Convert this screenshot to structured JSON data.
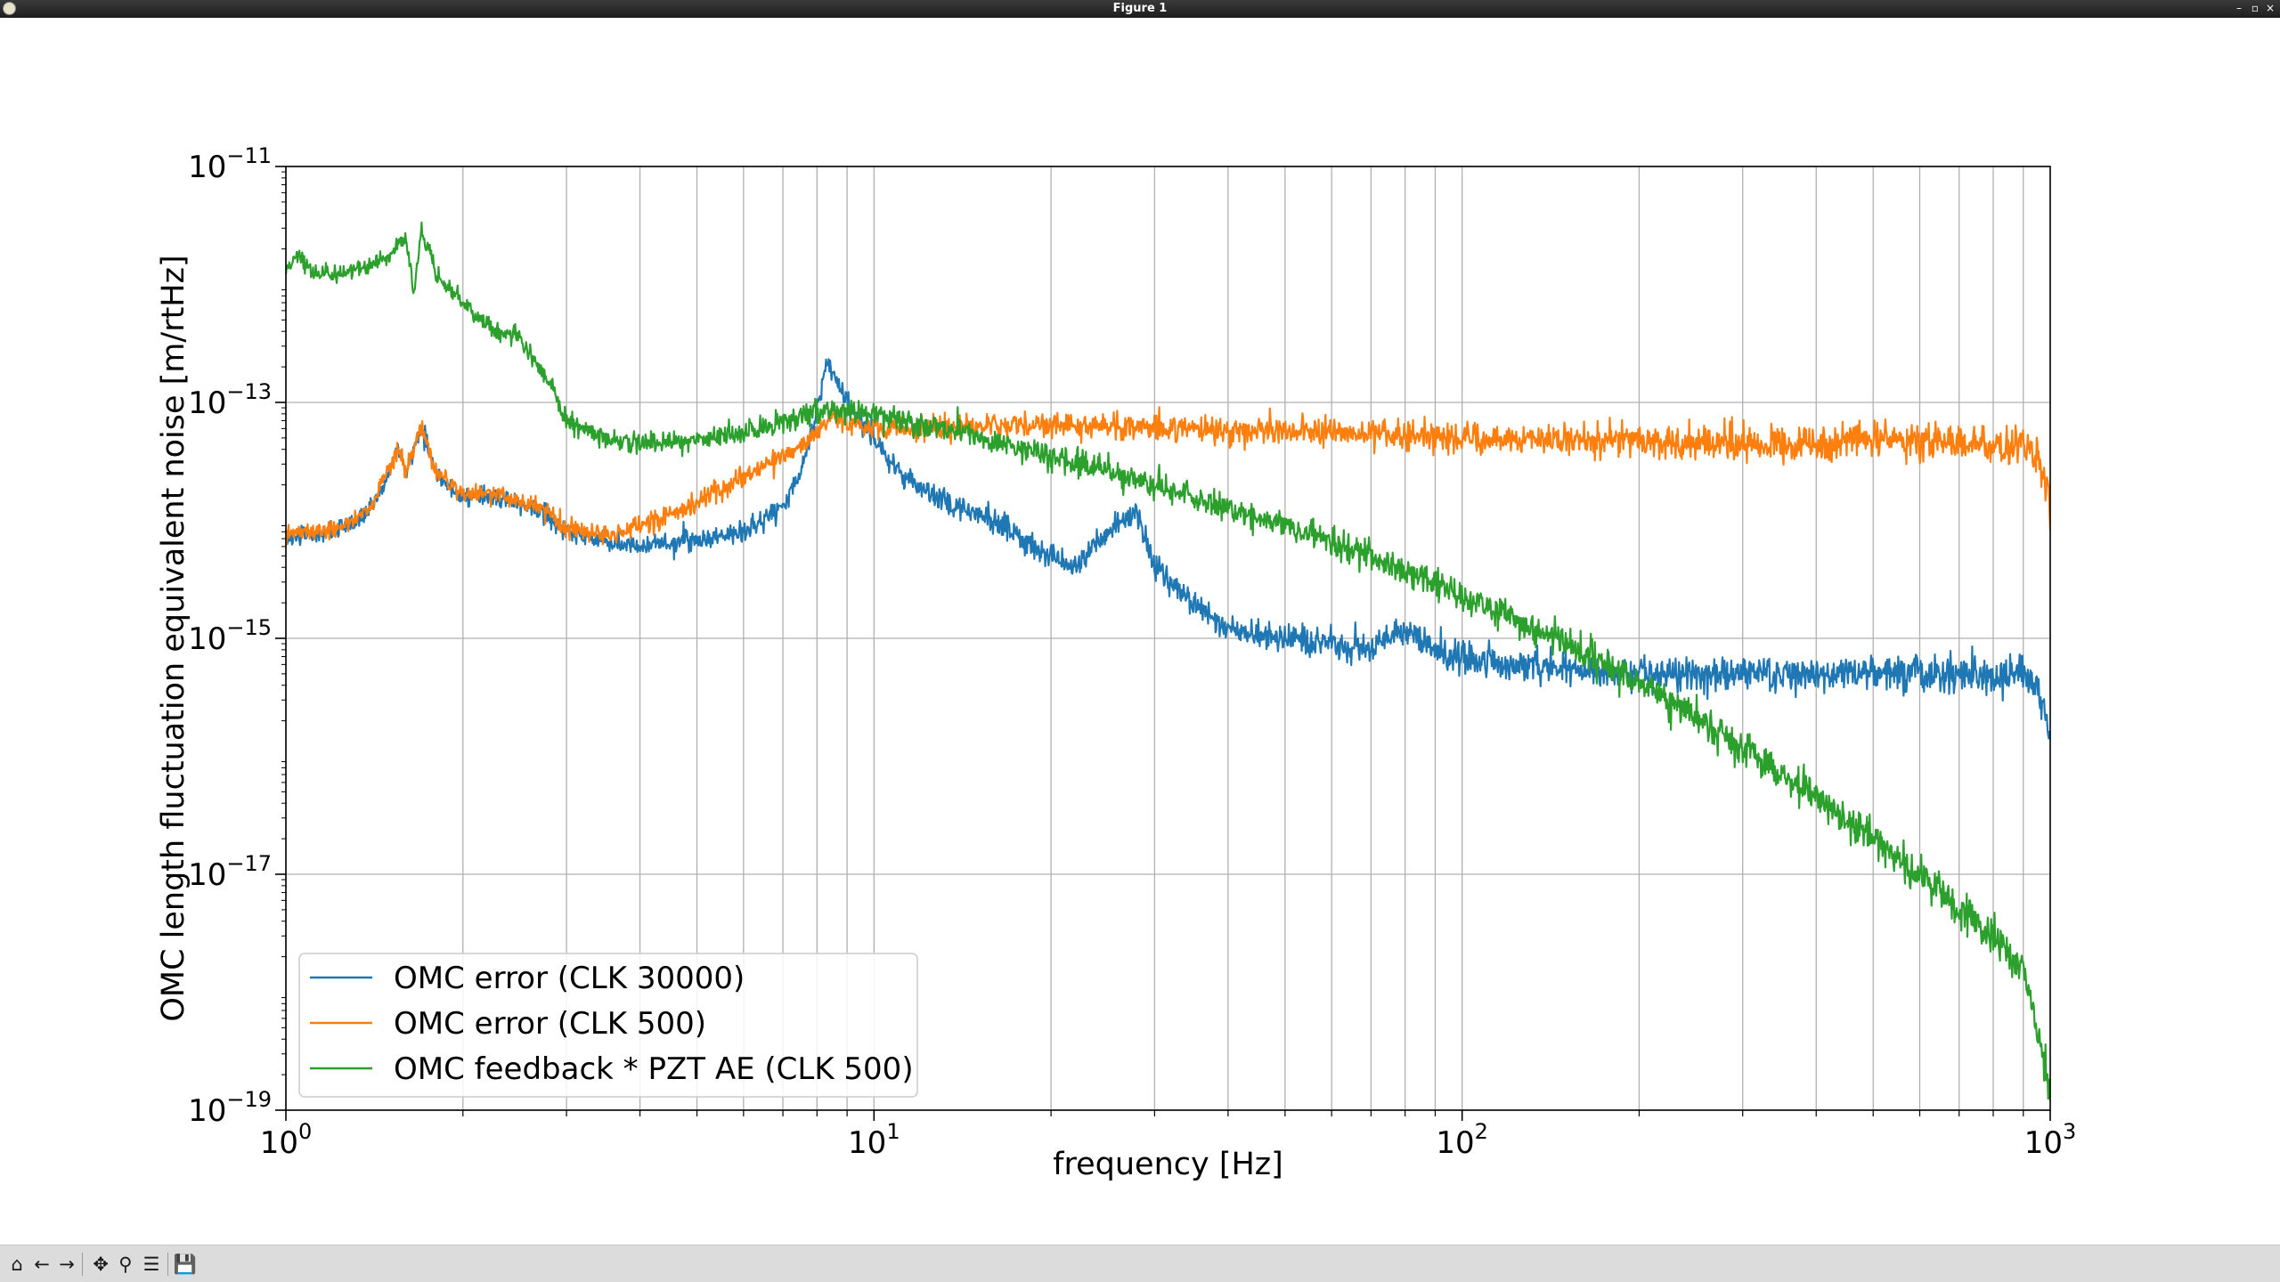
{
  "window": {
    "title": "Figure 1"
  },
  "toolbar": {
    "buttons": [
      {
        "name": "home-button",
        "icon": "home-icon",
        "glyph": "⌂"
      },
      {
        "name": "back-button",
        "icon": "arrow-left-icon",
        "glyph": "←"
      },
      {
        "name": "forward-button",
        "icon": "arrow-right-icon",
        "glyph": "→"
      },
      {
        "name": "pan-button",
        "icon": "move-icon",
        "glyph": "✥"
      },
      {
        "name": "zoom-button",
        "icon": "magnifier-icon",
        "glyph": "⚲"
      },
      {
        "name": "configure-subplots-button",
        "icon": "sliders-icon",
        "glyph": "☰"
      },
      {
        "name": "save-button",
        "icon": "floppy-disk-icon",
        "glyph": "💾"
      }
    ],
    "coordinates": ""
  },
  "chart_data": {
    "type": "line",
    "title": "",
    "xlabel": "frequency [Hz]",
    "ylabel": "OMC length fluctuation equivalent noise [m/rtHz]",
    "xscale": "log",
    "yscale": "log",
    "xlim": [
      1,
      1000
    ],
    "ylim": [
      1e-19,
      1e-11
    ],
    "xticks": [
      {
        "value": 1,
        "base": "10",
        "exp": "0"
      },
      {
        "value": 10,
        "base": "10",
        "exp": "1"
      },
      {
        "value": 100,
        "base": "10",
        "exp": "2"
      },
      {
        "value": 1000,
        "base": "10",
        "exp": "3"
      }
    ],
    "yticks": [
      {
        "value": 1e-19,
        "base": "10",
        "exp": "−19"
      },
      {
        "value": 1e-17,
        "base": "10",
        "exp": "−17"
      },
      {
        "value": 1e-15,
        "base": "10",
        "exp": "−15"
      },
      {
        "value": 1e-13,
        "base": "10",
        "exp": "−13"
      },
      {
        "value": 1e-11,
        "base": "10",
        "exp": "−11"
      }
    ],
    "grid": true,
    "legend_position": "lower-left",
    "series": [
      {
        "name": "OMC error (CLK 30000)",
        "color": "#1f77b4",
        "x": [
          1.0,
          1.1,
          1.2,
          1.3,
          1.4,
          1.5,
          1.55,
          1.6,
          1.65,
          1.7,
          1.8,
          2.0,
          2.2,
          2.5,
          2.8,
          3.0,
          3.5,
          4.0,
          5.0,
          6.0,
          7.0,
          7.5,
          8.0,
          8.3,
          8.6,
          9.0,
          10.0,
          11.0,
          13.0,
          16.0,
          20.0,
          22.0,
          25.0,
          28.0,
          30.0,
          35.0,
          40.0,
          50.0,
          60.0,
          70.0,
          80.0,
          90.0,
          100.0,
          120.0,
          150.0,
          200.0,
          300.0,
          500.0,
          700.0,
          900.0,
          950.0,
          1000.0
        ],
        "y": [
          7e-15,
          7.5e-15,
          8e-15,
          9.5e-15,
          1.3e-14,
          2.5e-14,
          4e-14,
          2.5e-14,
          4e-14,
          6e-14,
          2.5e-14,
          1.5e-14,
          1.6e-14,
          1.4e-14,
          1.1e-14,
          8e-15,
          6.5e-15,
          6e-15,
          6.8e-15,
          8e-15,
          1.3e-14,
          2.5e-14,
          9e-14,
          2.2e-13,
          1.6e-13,
          1e-13,
          5e-14,
          2.5e-14,
          1.5e-14,
          1e-14,
          5e-15,
          4e-15,
          8e-15,
          1.2e-14,
          4e-15,
          2e-15,
          1.2e-15,
          1e-15,
          9e-16,
          8e-16,
          1.2e-15,
          8e-16,
          7e-16,
          6e-16,
          5.5e-16,
          5e-16,
          5e-16,
          5e-16,
          5e-16,
          5e-16,
          4e-16,
          1.5e-16
        ]
      },
      {
        "name": "OMC error (CLK 500)",
        "color": "#ff7f0e",
        "x": [
          1.0,
          1.1,
          1.2,
          1.3,
          1.4,
          1.5,
          1.55,
          1.6,
          1.65,
          1.7,
          1.8,
          2.0,
          2.2,
          2.5,
          2.8,
          3.0,
          3.5,
          4.0,
          5.0,
          6.0,
          7.0,
          8.0,
          8.5,
          9.0,
          10.0,
          12.0,
          15.0,
          20.0,
          28.0,
          30.0,
          40.0,
          60.0,
          100.0,
          200.0,
          280.0,
          300.0,
          400.0,
          500.0,
          600.0,
          800.0,
          900.0,
          950.0,
          1000.0
        ],
        "y": [
          7.5e-15,
          8e-15,
          8.5e-15,
          1e-14,
          1.4e-14,
          2.7e-14,
          4.2e-14,
          2.6e-14,
          4.2e-14,
          6.2e-14,
          2.6e-14,
          1.6e-14,
          1.7e-14,
          1.5e-14,
          1.2e-14,
          8.5e-15,
          7.5e-15,
          9e-15,
          1.4e-14,
          2.3e-14,
          3.5e-14,
          5.5e-14,
          8e-14,
          7e-14,
          6e-14,
          6e-14,
          6.2e-14,
          6.5e-14,
          6.2e-14,
          6e-14,
          5.8e-14,
          5.5e-14,
          5e-14,
          4.7e-14,
          4.5e-14,
          4.5e-14,
          4.3e-14,
          5e-14,
          4.6e-14,
          4.3e-14,
          4.3e-14,
          3.5e-14,
          1.5e-14
        ]
      },
      {
        "name": "OMC feedback * PZT AE (CLK 500)",
        "color": "#2ca02c",
        "x": [
          1.0,
          1.05,
          1.1,
          1.2,
          1.3,
          1.4,
          1.5,
          1.6,
          1.65,
          1.7,
          1.75,
          1.8,
          2.0,
          2.2,
          2.5,
          2.8,
          3.0,
          3.5,
          4.0,
          5.0,
          6.0,
          7.0,
          8.0,
          9.0,
          10.0,
          12.0,
          15.0,
          20.0,
          30.0,
          50.0,
          70.0,
          100.0,
          150.0,
          200.0,
          300.0,
          400.0,
          500.0,
          600.0,
          700.0,
          800.0,
          900.0,
          1000.0
        ],
        "y": [
          1.3e-12,
          1.8e-12,
          1.3e-12,
          1.2e-12,
          1.3e-12,
          1.5e-12,
          1.8e-12,
          2.5e-12,
          8e-13,
          3e-12,
          2e-12,
          1.2e-12,
          7e-13,
          4.5e-13,
          3.5e-13,
          1.5e-13,
          7e-14,
          5e-14,
          4.5e-14,
          5e-14,
          5.5e-14,
          7e-14,
          8.5e-14,
          8.5e-14,
          8e-14,
          6.5e-14,
          5e-14,
          3.5e-14,
          2e-14,
          9e-15,
          5e-15,
          2.3e-15,
          9e-16,
          4.2e-16,
          1.2e-16,
          4.5e-17,
          2e-17,
          1e-17,
          5e-18,
          3e-18,
          1.5e-18,
          1.5e-19
        ]
      }
    ]
  }
}
